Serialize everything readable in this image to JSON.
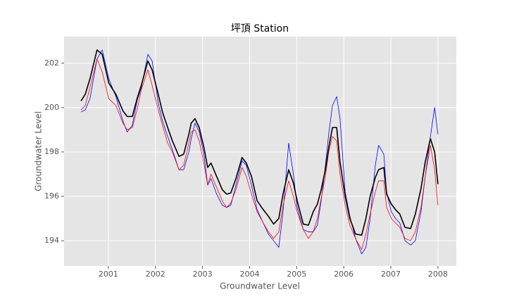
{
  "chart_data": {
    "type": "line",
    "title": "坪頂 Station",
    "x_label": "Groundwater Level",
    "y_label": "Groundwater Level",
    "x": [
      2000.42,
      2000.51,
      2000.61,
      2000.76,
      2000.87,
      2001.01,
      2001.16,
      2001.31,
      2001.4,
      2001.51,
      2001.61,
      2001.7,
      2001.84,
      2001.93,
      2002.06,
      2002.15,
      2002.26,
      2002.36,
      2002.5,
      2002.6,
      2002.71,
      2002.76,
      2002.84,
      2002.93,
      2003.03,
      2003.11,
      2003.18,
      2003.3,
      2003.42,
      2003.51,
      2003.6,
      2003.71,
      2003.84,
      2003.93,
      2004.04,
      2004.16,
      2004.29,
      2004.4,
      2004.51,
      2004.62,
      2004.71,
      2004.83,
      2004.93,
      2005.01,
      2005.14,
      2005.25,
      2005.35,
      2005.44,
      2005.52,
      2005.61,
      2005.68,
      2005.76,
      2005.85,
      2005.92,
      2006.03,
      2006.13,
      2006.25,
      2006.38,
      2006.47,
      2006.56,
      2006.67,
      2006.74,
      2006.85,
      2006.91,
      2007.01,
      2007.1,
      2007.19,
      2007.3,
      2007.42,
      2007.52,
      2007.64,
      2007.73,
      2007.84,
      2007.93,
      2008.0
    ],
    "series": [
      {
        "color": "#0000ff",
        "width": 0.8,
        "values": [
          199.8,
          199.9,
          200.4,
          202.2,
          202.6,
          201.3,
          200.5,
          199.4,
          198.9,
          199.2,
          200.3,
          200.9,
          202.4,
          202.1,
          200.2,
          199.4,
          198.7,
          198.1,
          197.2,
          197.2,
          198.0,
          198.6,
          199.3,
          198.9,
          197.9,
          196.5,
          196.8,
          196.1,
          195.6,
          195.5,
          195.6,
          196.5,
          197.6,
          197.4,
          196.5,
          195.4,
          194.8,
          194.3,
          194.0,
          193.7,
          195.3,
          198.4,
          197.0,
          195.5,
          194.5,
          194.4,
          194.4,
          194.7,
          195.8,
          197.4,
          198.8,
          200.1,
          200.5,
          199.5,
          196.2,
          195.1,
          194.1,
          193.4,
          193.7,
          195.0,
          197.4,
          198.3,
          197.9,
          196.2,
          195.3,
          195.0,
          194.8,
          194.0,
          193.8,
          194.0,
          195.3,
          196.9,
          198.7,
          200.0,
          198.8
        ]
      },
      {
        "color": "#ff0000",
        "width": 0.8,
        "values": [
          199.9,
          200.1,
          200.9,
          202.2,
          201.6,
          200.4,
          200.1,
          199.3,
          199.0,
          199.1,
          199.9,
          200.8,
          201.7,
          201.0,
          199.9,
          199.2,
          198.4,
          198.0,
          197.2,
          197.4,
          198.4,
          198.9,
          199.0,
          198.5,
          197.5,
          196.5,
          197.0,
          196.4,
          195.8,
          195.5,
          195.7,
          196.3,
          197.3,
          196.9,
          196.1,
          195.3,
          194.8,
          194.4,
          194.1,
          194.4,
          195.6,
          196.7,
          196.0,
          195.3,
          194.5,
          194.1,
          194.4,
          195.0,
          195.9,
          196.9,
          198.0,
          198.7,
          198.5,
          197.0,
          195.6,
          194.7,
          194.1,
          193.6,
          194.3,
          195.2,
          196.2,
          196.7,
          196.7,
          195.5,
          195.0,
          194.8,
          194.6,
          194.1,
          194.0,
          194.4,
          195.5,
          196.9,
          198.3,
          197.2,
          195.6
        ]
      },
      {
        "color": "#000000",
        "width": 1.6,
        "values": [
          200.3,
          200.6,
          201.3,
          202.6,
          202.4,
          201.1,
          200.6,
          199.85,
          199.6,
          199.6,
          200.4,
          201.0,
          202.1,
          201.7,
          200.6,
          199.8,
          199.1,
          198.5,
          197.8,
          197.9,
          198.8,
          199.3,
          199.5,
          199.1,
          198.2,
          197.3,
          197.5,
          196.9,
          196.3,
          196.1,
          196.15,
          196.8,
          197.75,
          197.5,
          196.9,
          195.8,
          195.4,
          195.1,
          194.75,
          195.0,
          196.1,
          197.2,
          196.6,
          195.8,
          194.75,
          194.7,
          195.3,
          195.65,
          196.3,
          197.2,
          198.2,
          199.1,
          199.1,
          197.55,
          196.0,
          195.0,
          194.3,
          194.25,
          195.0,
          196.0,
          196.85,
          197.2,
          197.3,
          196.1,
          195.65,
          195.4,
          195.2,
          194.6,
          194.55,
          195.2,
          196.35,
          197.55,
          198.6,
          198.0,
          196.55
        ]
      }
    ],
    "xlim": [
      2000.06,
      2008.39
    ],
    "ylim": [
      192.86,
      203.2
    ],
    "xticks": [
      2001,
      2002,
      2003,
      2004,
      2005,
      2006,
      2007,
      2008
    ],
    "yticks": [
      194,
      196,
      198,
      200,
      202
    ],
    "grid": true
  }
}
